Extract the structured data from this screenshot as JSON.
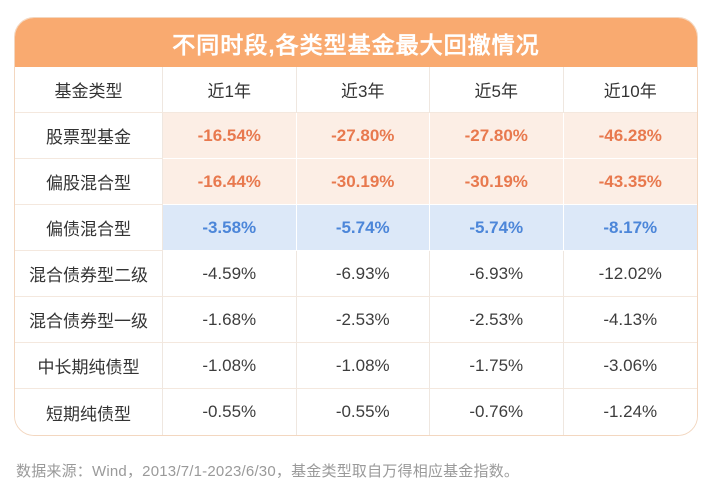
{
  "title": "不同时段,各类型基金最大回撤情况",
  "footer": "数据来源：Wind，2013/7/1-2023/6/30，基金类型取自万得相应基金指数。",
  "colors": {
    "banner_bg": "#f9aa70",
    "banner_text": "#ffffff",
    "card_border": "#f3d7c0",
    "orange_row_bg": "#fceee5",
    "orange_row_text": "#e8794e",
    "blue_row_bg": "#dce8f8",
    "blue_row_text": "#4c86d9",
    "plain_text": "#3d3d3d",
    "footer_text": "#9a9a9a"
  },
  "chart_data": {
    "type": "table",
    "title": "不同时段,各类型基金最大回撤情况",
    "columns": [
      "基金类型",
      "近1年",
      "近3年",
      "近5年",
      "近10年"
    ],
    "rows": [
      {
        "label": "股票型基金",
        "values": [
          "-16.54%",
          "-27.80%",
          "-27.80%",
          "-46.28%"
        ],
        "highlight": "orange"
      },
      {
        "label": "偏股混合型",
        "values": [
          "-16.44%",
          "-30.19%",
          "-30.19%",
          "-43.35%"
        ],
        "highlight": "orange"
      },
      {
        "label": "偏债混合型",
        "values": [
          "-3.58%",
          "-5.74%",
          "-5.74%",
          "-8.17%"
        ],
        "highlight": "blue"
      },
      {
        "label": "混合债券型二级",
        "values": [
          "-4.59%",
          "-6.93%",
          "-6.93%",
          "-12.02%"
        ],
        "highlight": "none"
      },
      {
        "label": "混合债券型一级",
        "values": [
          "-1.68%",
          "-2.53%",
          "-2.53%",
          "-4.13%"
        ],
        "highlight": "none"
      },
      {
        "label": "中长期纯债型",
        "values": [
          "-1.08%",
          "-1.08%",
          "-1.75%",
          "-3.06%"
        ],
        "highlight": "none"
      },
      {
        "label": "短期纯债型",
        "values": [
          "-0.55%",
          "-0.55%",
          "-0.76%",
          "-1.24%"
        ],
        "highlight": "none"
      }
    ]
  }
}
